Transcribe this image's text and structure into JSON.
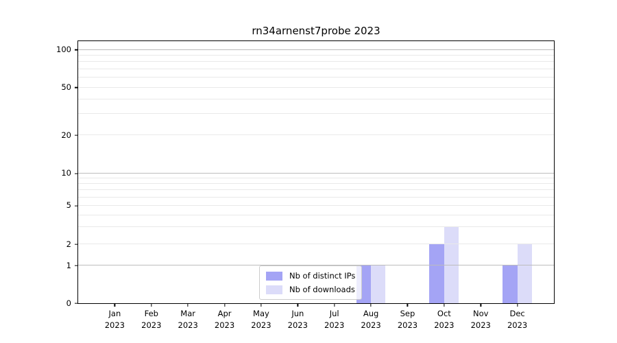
{
  "chart_data": {
    "type": "bar",
    "title": "rn34arnenst7probe 2023",
    "categories": [
      "Jan",
      "Feb",
      "Mar",
      "Apr",
      "May",
      "Jun",
      "Jul",
      "Aug",
      "Sep",
      "Oct",
      "Nov",
      "Dec"
    ],
    "year": "2023",
    "series": [
      {
        "name": "Nb of distinct IPs",
        "color": "#a4a4f5",
        "values": [
          0,
          0,
          0,
          0,
          0,
          0,
          0,
          1,
          0,
          2,
          0,
          1
        ]
      },
      {
        "name": "Nb of downloads",
        "color": "#dcdcf9",
        "values": [
          0,
          0,
          0,
          0,
          0,
          0,
          0,
          1,
          0,
          3,
          0,
          2
        ]
      }
    ],
    "xlabel": "",
    "ylabel": "",
    "y_axis": {
      "scale": "symlog",
      "tick_labels": [
        "0",
        "1",
        "2",
        "5",
        "10",
        "20",
        "50",
        "100"
      ],
      "anchors": [
        [
          0,
          0
        ],
        [
          1,
          0.143
        ],
        [
          2,
          0.224
        ],
        [
          5,
          0.372
        ],
        [
          10,
          0.495
        ],
        [
          20,
          0.641
        ],
        [
          50,
          0.823
        ],
        [
          100,
          0.967
        ]
      ],
      "major_gridlines": [
        1,
        10,
        100
      ],
      "minor_gridlines": [
        2,
        3,
        4,
        5,
        6,
        7,
        8,
        9,
        20,
        30,
        40,
        50,
        60,
        70,
        80,
        90
      ]
    },
    "grid": true,
    "legend_position": "lower center",
    "colors": {
      "grid_major": "#bcbcbc",
      "grid_minor": "#e9e9e9",
      "spine": "#000000"
    }
  }
}
